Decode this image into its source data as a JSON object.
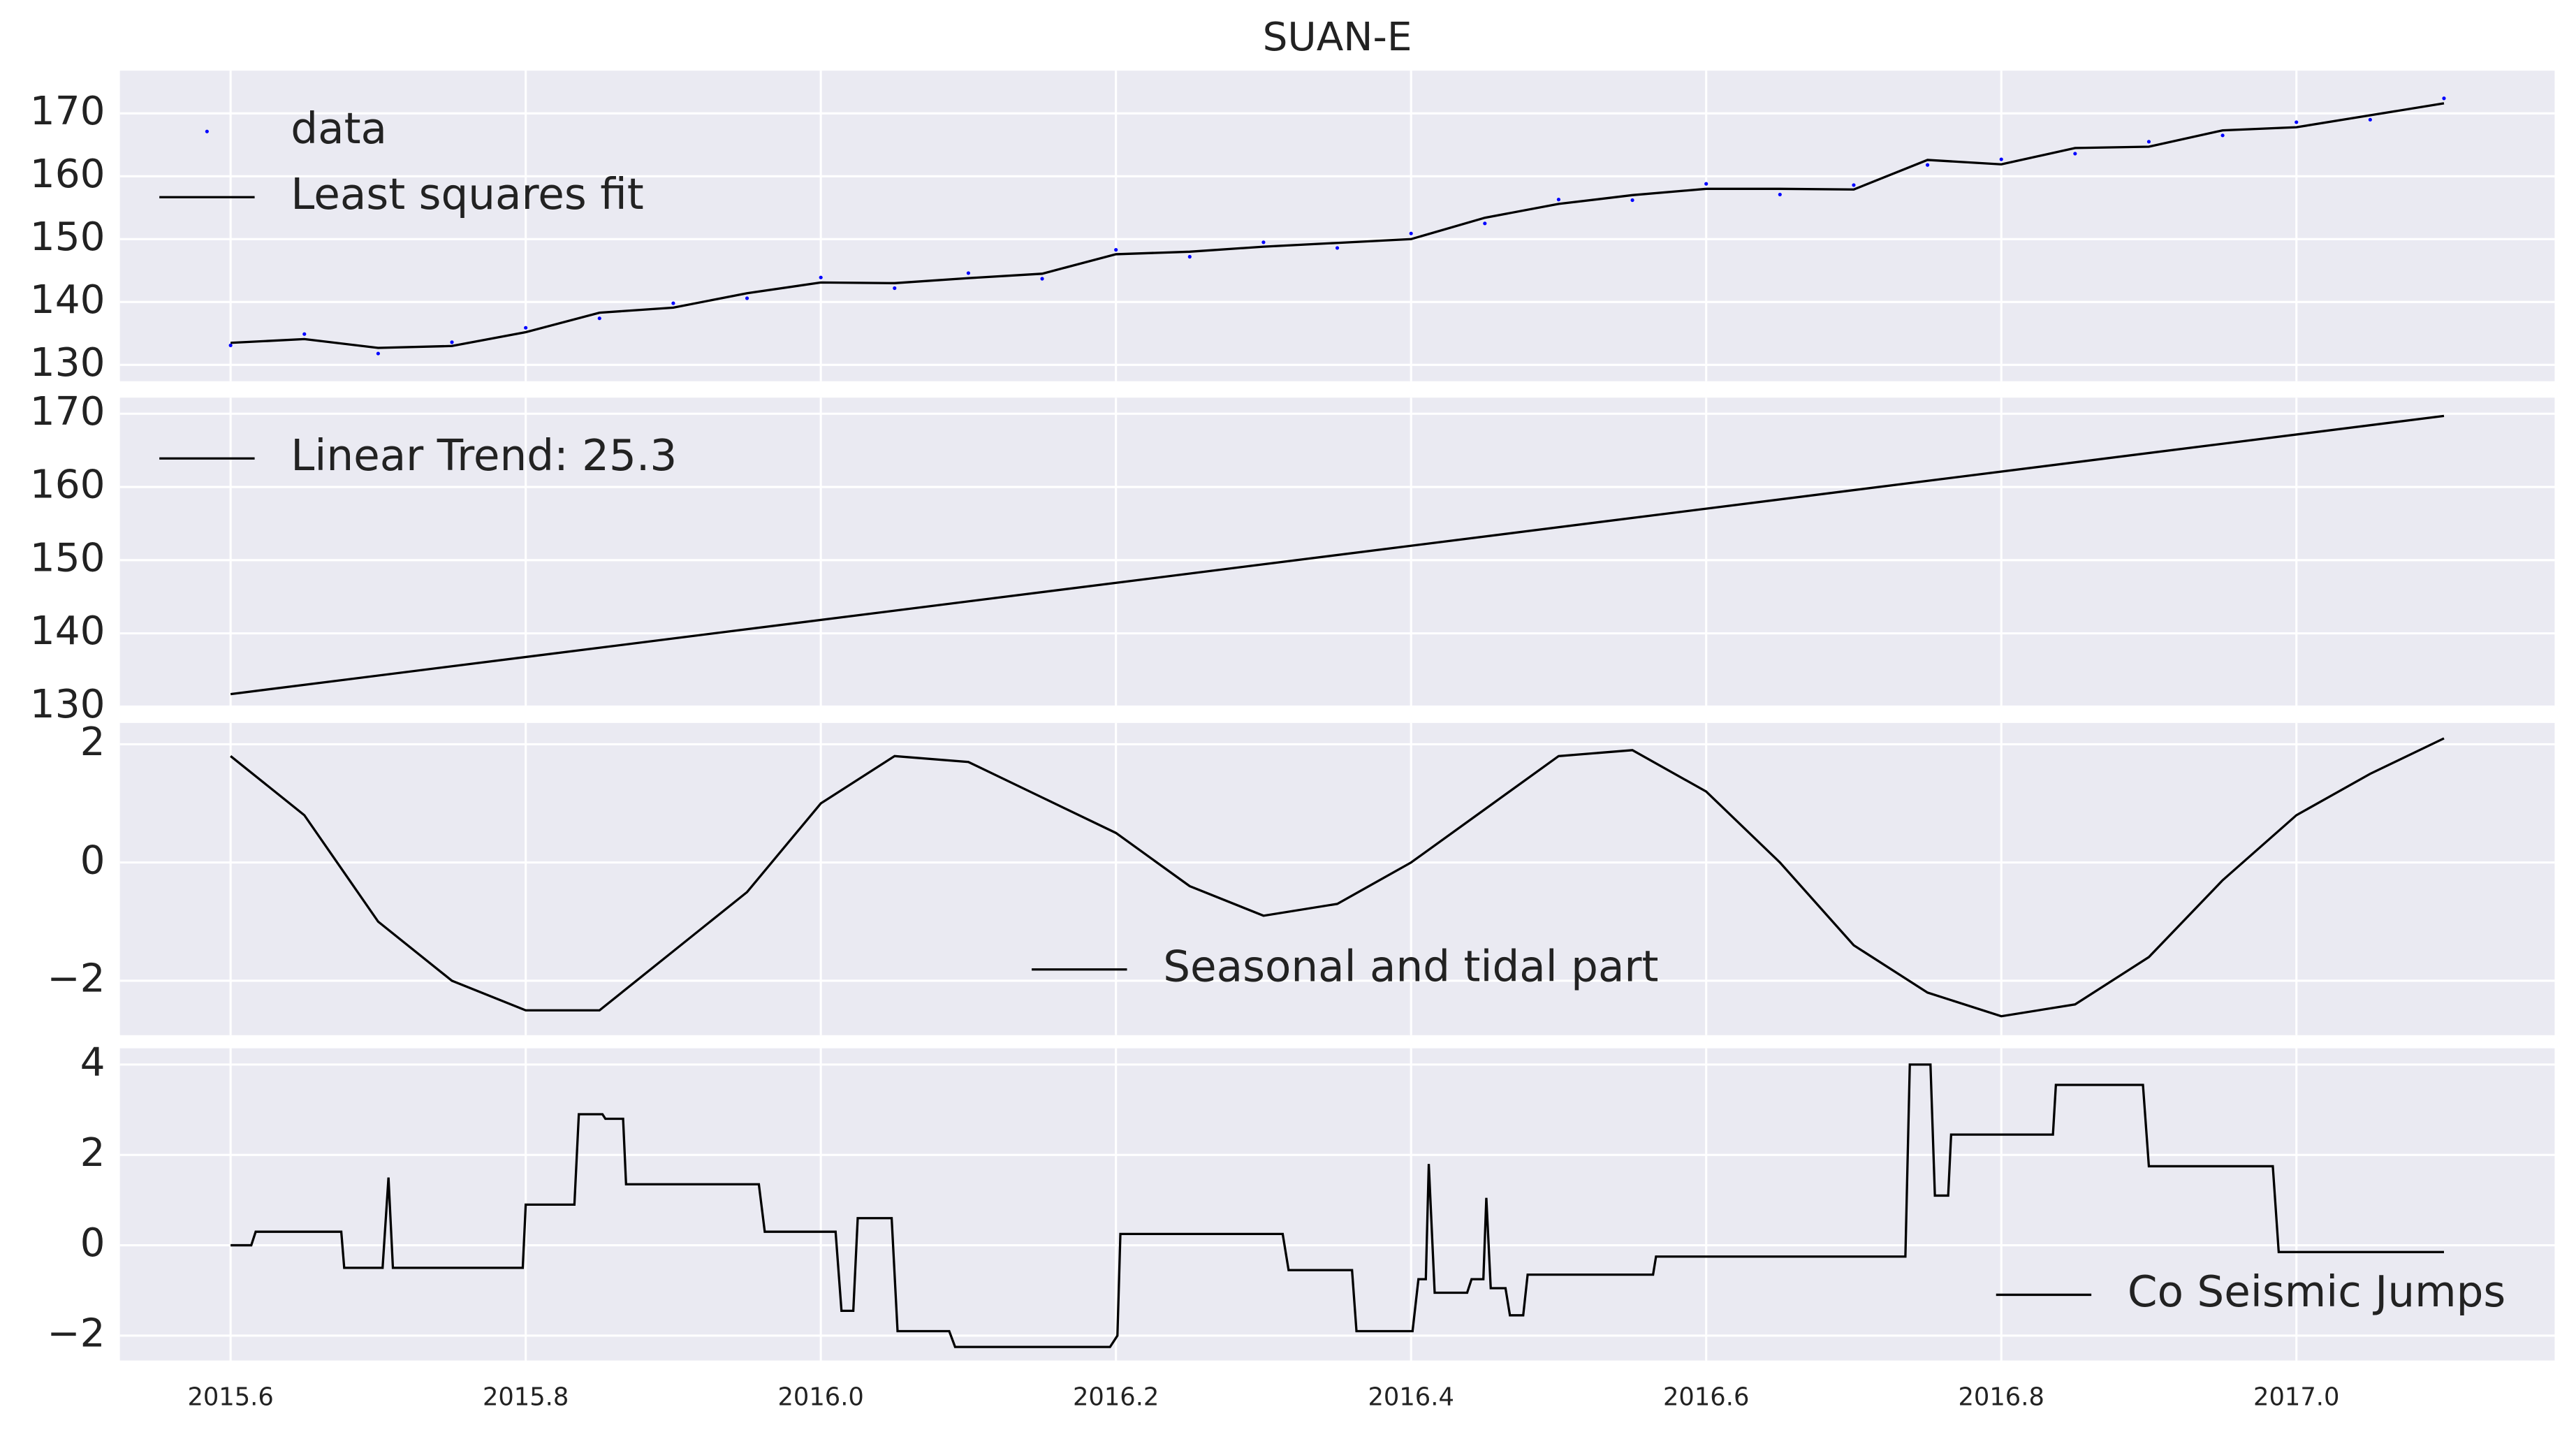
{
  "chart_data": [
    {
      "type": "line",
      "title": "SUAN-E",
      "x": [
        2015.6,
        2015.65,
        2015.7,
        2015.75,
        2015.8,
        2015.85,
        2015.9,
        2015.95,
        2016.0,
        2016.05,
        2016.1,
        2016.15,
        2016.2,
        2016.25,
        2016.3,
        2016.35,
        2016.4,
        2016.45,
        2016.5,
        2016.55,
        2016.6,
        2016.65,
        2016.7,
        2016.75,
        2016.8,
        2016.85,
        2016.9,
        2016.95,
        2017.0,
        2017.05,
        2017.1
      ],
      "series": [
        {
          "name": "data",
          "color": "#0000ff",
          "type": "scatter",
          "values": [
            133.1,
            134.9,
            131.8,
            133.6,
            135.9,
            137.4,
            139.8,
            140.6,
            143.9,
            142.2,
            144.6,
            143.7,
            148.3,
            147.2,
            149.5,
            148.6,
            150.9,
            152.5,
            156.3,
            156.2,
            158.8,
            157.1,
            158.6,
            161.8,
            162.7,
            163.6,
            165.5,
            166.5,
            168.6,
            169.0,
            172.4
          ]
        },
        {
          "name": "Least squares fit",
          "color": "#000000",
          "type": "line",
          "values": [
            133.5,
            134.1,
            132.7,
            133.0,
            135.2,
            138.3,
            139.1,
            141.4,
            143.1,
            143.0,
            143.8,
            144.5,
            147.6,
            148.0,
            148.8,
            149.4,
            150.0,
            153.4,
            155.6,
            157.0,
            158.0,
            158.0,
            157.9,
            162.6,
            161.9,
            164.5,
            164.7,
            167.3,
            167.8,
            169.7,
            171.6
          ]
        }
      ],
      "xlim": [
        2015.525,
        2017.175
      ],
      "xticks": [
        2015.6,
        2015.8,
        {
          "value": 2016,
          "label": "2016.0"
        },
        2016.2,
        2016.4,
        2016.6,
        2016.8,
        {
          "value": 2017,
          "label": "2017.0"
        }
      ],
      "ylim": [
        127.4,
        176.8
      ],
      "yticks": [
        130,
        140,
        150,
        160,
        170
      ],
      "grid": true,
      "legend": "upper left"
    },
    {
      "type": "line",
      "x": [
        2015.6,
        2017.1
      ],
      "series": [
        {
          "name": "Linear Trend: 25.3",
          "color": "#000000",
          "type": "line",
          "values": [
            131.7,
            169.7
          ]
        }
      ],
      "xlim": [
        2015.525,
        2017.175
      ],
      "xticks": [
        2015.6,
        2015.8,
        {
          "value": 2016,
          "label": "2016.0"
        },
        2016.2,
        2016.4,
        2016.6,
        2016.8,
        {
          "value": 2017,
          "label": "2017.0"
        }
      ],
      "ylim": [
        130,
        172.2
      ],
      "yticks": [
        130,
        140,
        150,
        160,
        170
      ],
      "grid": true,
      "legend": "upper left"
    },
    {
      "type": "line",
      "x": [
        2015.6,
        2015.65,
        2015.7,
        2015.75,
        2015.8,
        2015.85,
        2015.9,
        2015.95,
        2016.0,
        2016.05,
        2016.1,
        2016.15,
        2016.2,
        2016.25,
        2016.3,
        2016.35,
        2016.4,
        2016.45,
        2016.5,
        2016.55,
        2016.6,
        2016.65,
        2016.7,
        2016.75,
        2016.8,
        2016.85,
        2016.9,
        2016.95,
        2017.0,
        2017.05,
        2017.1
      ],
      "series": [
        {
          "name": "Seasonal and tidal part",
          "color": "#000000",
          "type": "line",
          "values": [
            1.8,
            0.8,
            -1.0,
            -2.0,
            -2.5,
            -2.5,
            -1.5,
            -0.5,
            1.0,
            1.8,
            1.7,
            1.1,
            0.5,
            -0.4,
            -0.9,
            -0.7,
            0.0,
            0.9,
            1.8,
            1.9,
            1.2,
            0.0,
            -1.4,
            -2.2,
            -2.6,
            -2.4,
            -1.6,
            -0.3,
            0.8,
            1.5,
            2.1
          ]
        }
      ],
      "xlim": [
        2015.525,
        2017.175
      ],
      "xticks": [
        2015.6,
        2015.8,
        {
          "value": 2016,
          "label": "2016.0"
        },
        2016.2,
        2016.4,
        2016.6,
        2016.8,
        {
          "value": 2017,
          "label": "2017.0"
        }
      ],
      "ylim": [
        -2.92,
        2.36
      ],
      "yticks": [
        {
          "value": -2,
          "label": "−2"
        },
        0,
        2
      ],
      "grid": true,
      "legend": "lower center"
    },
    {
      "type": "line",
      "x": [
        2015.6,
        2015.614,
        2015.617,
        2015.675,
        2015.677,
        2015.703,
        2015.707,
        2015.71,
        2015.798,
        2015.8,
        2015.833,
        2015.836,
        2015.852,
        2015.854,
        2015.866,
        2015.868,
        2015.958,
        2015.962,
        2016.01,
        2016.014,
        2016.022,
        2016.025,
        2016.048,
        2016.052,
        2016.087,
        2016.091,
        2016.196,
        2016.201,
        2016.203,
        2016.313,
        2016.317,
        2016.36,
        2016.363,
        2016.401,
        2016.405,
        2016.41,
        2016.412,
        2016.416,
        2016.438,
        2016.441,
        2016.449,
        2016.451,
        2016.454,
        2016.464,
        2016.467,
        2016.476,
        2016.479,
        2016.564,
        2016.566,
        2016.735,
        2016.738,
        2016.752,
        2016.755,
        2016.764,
        2016.766,
        2016.835,
        2016.837,
        2016.896,
        2016.9,
        2016.984,
        2016.988,
        2017.1
      ],
      "series": [
        {
          "name": "Co Seismic Jumps",
          "color": "#000000",
          "type": "line",
          "values": [
            0,
            0,
            0.3,
            0.3,
            -0.5,
            -0.5,
            1.5,
            -0.5,
            -0.5,
            0.9,
            0.9,
            2.9,
            2.9,
            2.8,
            2.8,
            1.35,
            1.35,
            0.3,
            0.3,
            -1.45,
            -1.45,
            0.6,
            0.6,
            -1.9,
            -1.9,
            -2.25,
            -2.25,
            -2.0,
            0.25,
            0.25,
            -0.55,
            -0.55,
            -1.9,
            -1.9,
            -0.75,
            -0.75,
            1.8,
            -1.05,
            -1.05,
            -0.75,
            -0.75,
            1.05,
            -0.95,
            -0.95,
            -1.55,
            -1.55,
            -0.65,
            -0.65,
            -0.25,
            -0.25,
            4.0,
            4.0,
            1.1,
            1.1,
            2.45,
            2.45,
            3.55,
            3.55,
            1.75,
            1.75,
            -0.15,
            -0.15
          ]
        }
      ],
      "xlim": [
        2015.525,
        2017.175
      ],
      "xticks": [
        2015.6,
        2015.8,
        {
          "value": 2016,
          "label": "2016.0"
        },
        2016.2,
        2016.4,
        2016.6,
        2016.8,
        {
          "value": 2017,
          "label": "2017.0"
        }
      ],
      "ylim": [
        -2.55,
        4.36
      ],
      "yticks": [
        {
          "value": -2,
          "label": "−2"
        },
        0,
        2,
        4
      ],
      "grid": true,
      "legend": "lower right"
    }
  ]
}
